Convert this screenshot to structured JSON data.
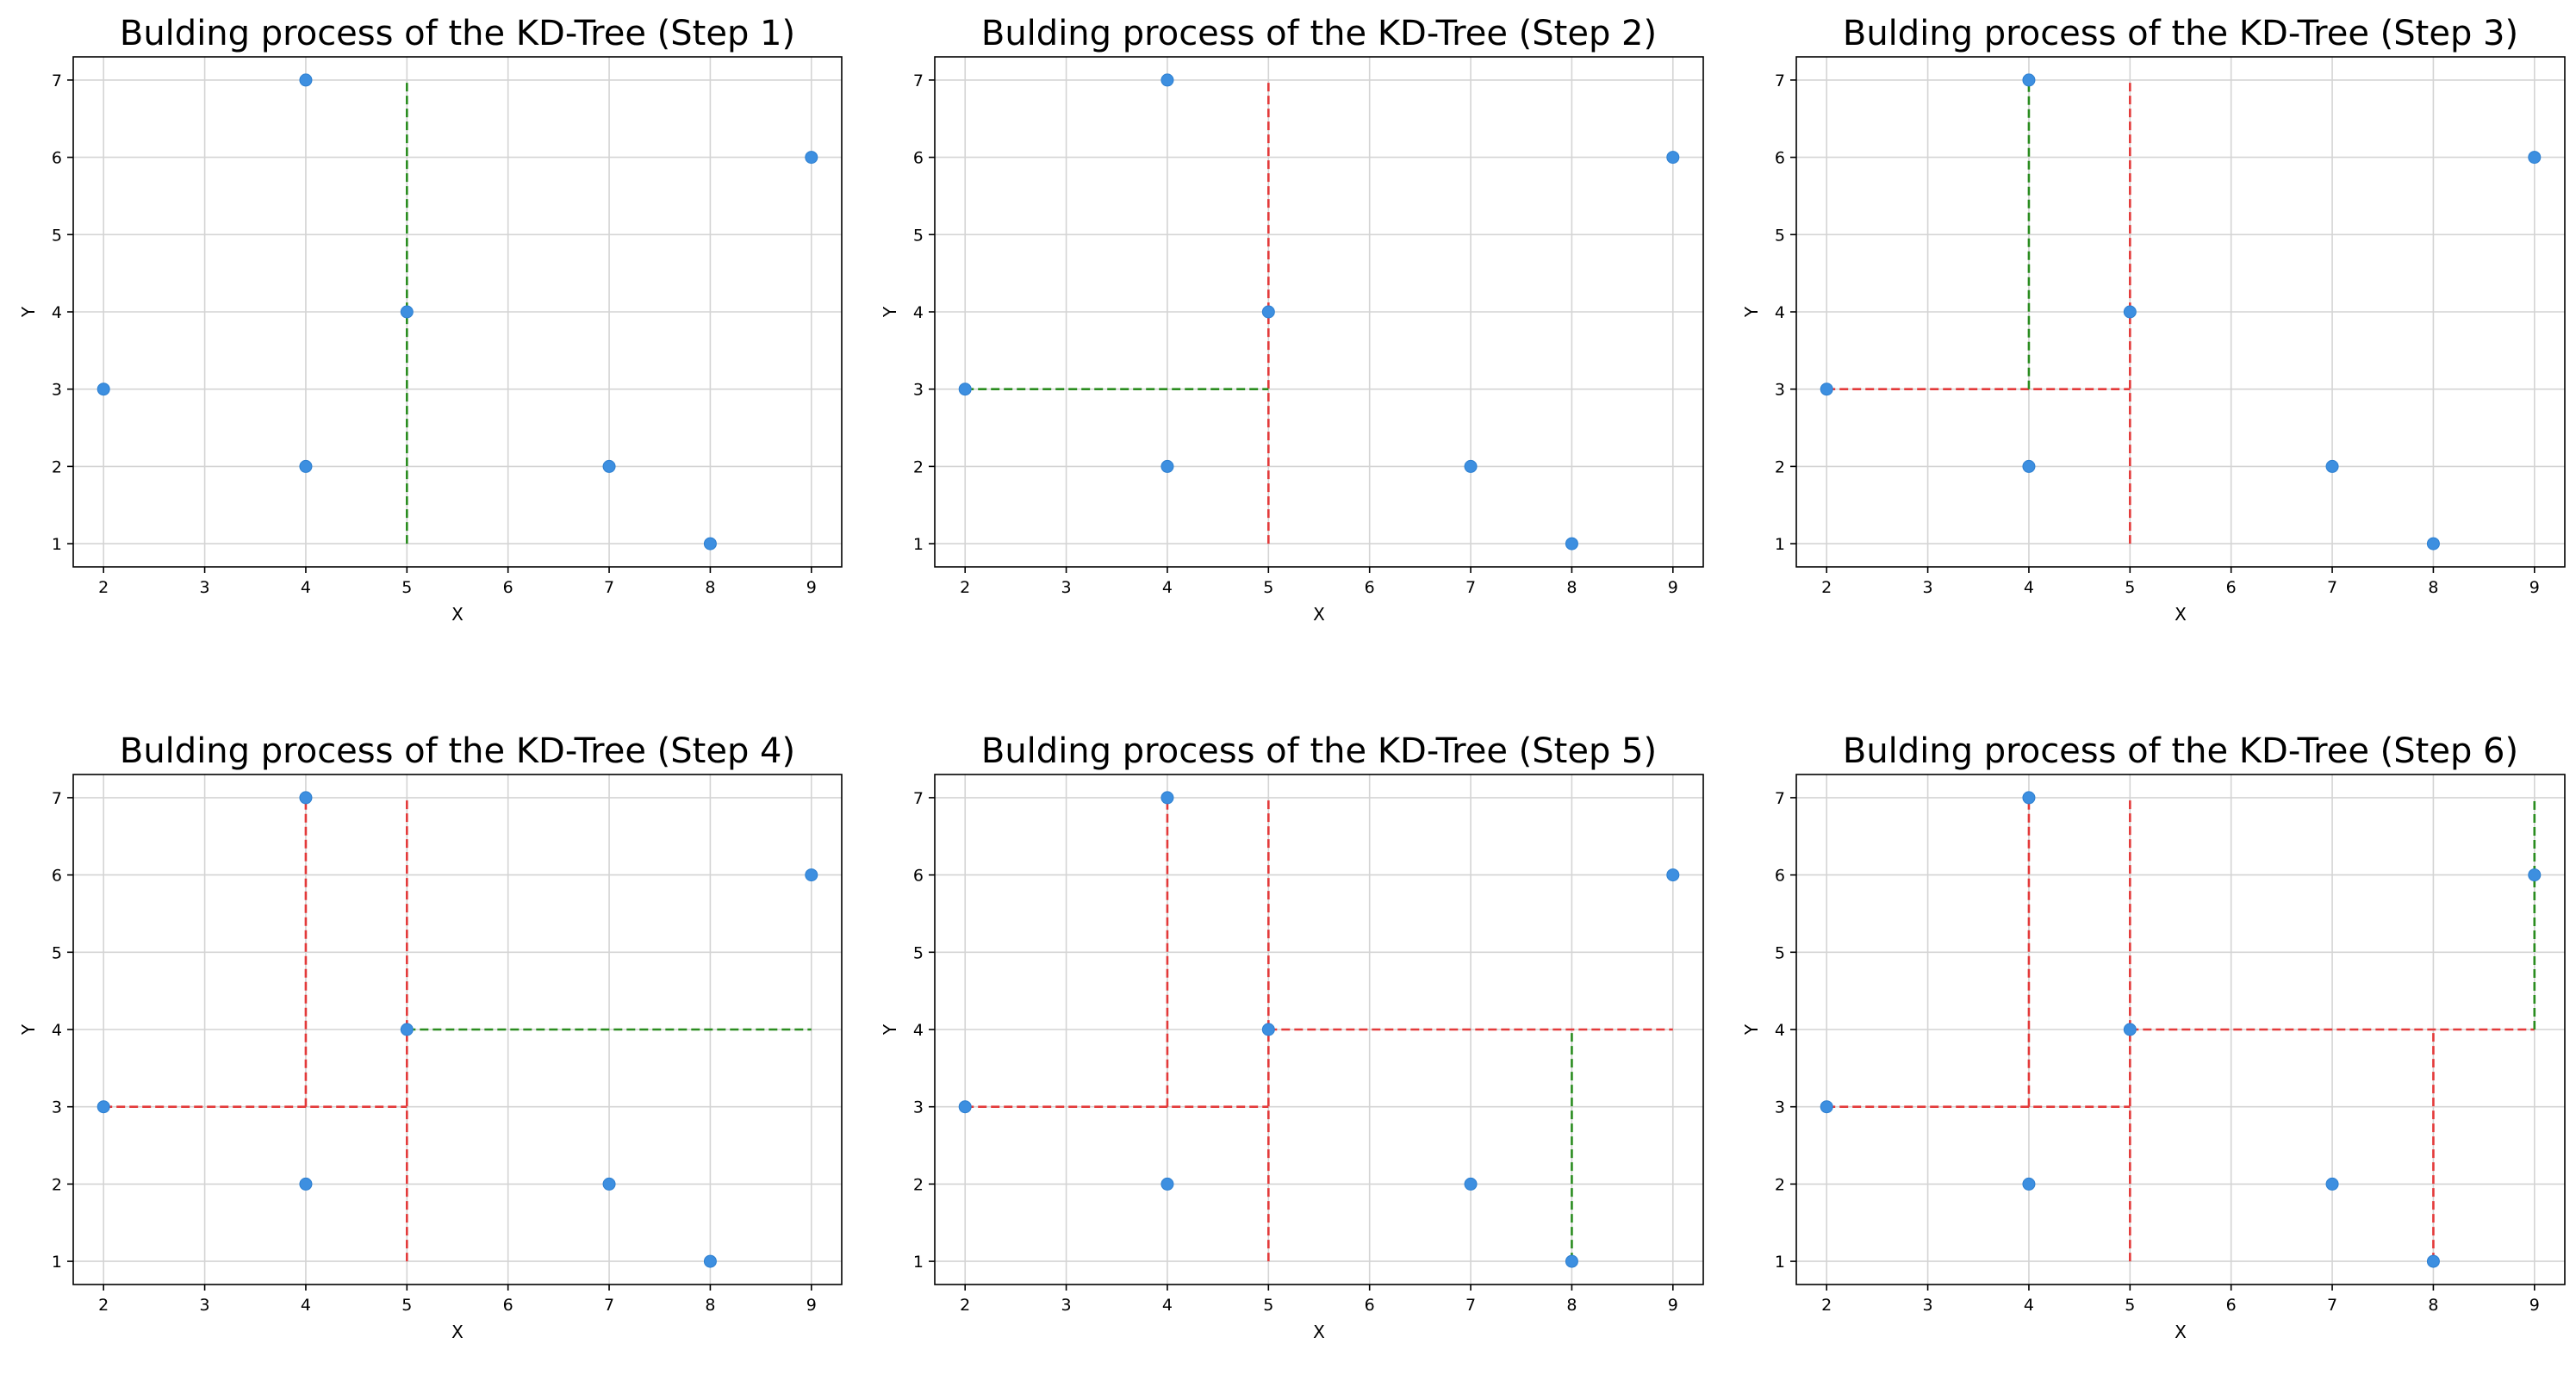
{
  "chart_data": [
    {
      "type": "scatter",
      "title": "Bulding process of the KD-Tree (Step 1)",
      "xlabel": "X",
      "ylabel": "Y",
      "xticks": [
        "2",
        "3",
        "4",
        "5",
        "6",
        "7",
        "8",
        "9"
      ],
      "yticks": [
        "1",
        "2",
        "3",
        "4",
        "5",
        "6",
        "7"
      ],
      "xlim": [
        1.7,
        9.3
      ],
      "ylim": [
        0.7,
        7.3
      ],
      "grid": true,
      "points": [
        [
          2,
          3
        ],
        [
          4,
          2
        ],
        [
          4,
          7
        ],
        [
          5,
          4
        ],
        [
          7,
          2
        ],
        [
          8,
          1
        ],
        [
          9,
          6
        ]
      ],
      "splits": [
        {
          "x1": 5,
          "y1": 1,
          "x2": 5,
          "y2": 7,
          "color": "#2a8c1f"
        }
      ]
    },
    {
      "type": "scatter",
      "title": "Bulding process of the KD-Tree (Step 2)",
      "xlabel": "X",
      "ylabel": "Y",
      "xticks": [
        "2",
        "3",
        "4",
        "5",
        "6",
        "7",
        "8",
        "9"
      ],
      "yticks": [
        "1",
        "2",
        "3",
        "4",
        "5",
        "6",
        "7"
      ],
      "xlim": [
        1.7,
        9.3
      ],
      "ylim": [
        0.7,
        7.3
      ],
      "grid": true,
      "points": [
        [
          2,
          3
        ],
        [
          4,
          2
        ],
        [
          4,
          7
        ],
        [
          5,
          4
        ],
        [
          7,
          2
        ],
        [
          8,
          1
        ],
        [
          9,
          6
        ]
      ],
      "splits": [
        {
          "x1": 5,
          "y1": 1,
          "x2": 5,
          "y2": 7,
          "color": "#e33a3a"
        },
        {
          "x1": 2,
          "y1": 3,
          "x2": 5,
          "y2": 3,
          "color": "#2a8c1f"
        }
      ]
    },
    {
      "type": "scatter",
      "title": "Bulding process of the KD-Tree (Step 3)",
      "xlabel": "X",
      "ylabel": "Y",
      "xticks": [
        "2",
        "3",
        "4",
        "5",
        "6",
        "7",
        "8",
        "9"
      ],
      "yticks": [
        "1",
        "2",
        "3",
        "4",
        "5",
        "6",
        "7"
      ],
      "xlim": [
        1.7,
        9.3
      ],
      "ylim": [
        0.7,
        7.3
      ],
      "grid": true,
      "points": [
        [
          2,
          3
        ],
        [
          4,
          2
        ],
        [
          4,
          7
        ],
        [
          5,
          4
        ],
        [
          7,
          2
        ],
        [
          8,
          1
        ],
        [
          9,
          6
        ]
      ],
      "splits": [
        {
          "x1": 5,
          "y1": 1,
          "x2": 5,
          "y2": 7,
          "color": "#e33a3a"
        },
        {
          "x1": 2,
          "y1": 3,
          "x2": 5,
          "y2": 3,
          "color": "#e33a3a"
        },
        {
          "x1": 4,
          "y1": 3,
          "x2": 4,
          "y2": 7,
          "color": "#2a8c1f"
        }
      ]
    },
    {
      "type": "scatter",
      "title": "Bulding process of the KD-Tree (Step 4)",
      "xlabel": "X",
      "ylabel": "Y",
      "xticks": [
        "2",
        "3",
        "4",
        "5",
        "6",
        "7",
        "8",
        "9"
      ],
      "yticks": [
        "1",
        "2",
        "3",
        "4",
        "5",
        "6",
        "7"
      ],
      "xlim": [
        1.7,
        9.3
      ],
      "ylim": [
        0.7,
        7.3
      ],
      "grid": true,
      "points": [
        [
          2,
          3
        ],
        [
          4,
          2
        ],
        [
          4,
          7
        ],
        [
          5,
          4
        ],
        [
          7,
          2
        ],
        [
          8,
          1
        ],
        [
          9,
          6
        ]
      ],
      "splits": [
        {
          "x1": 5,
          "y1": 1,
          "x2": 5,
          "y2": 7,
          "color": "#e33a3a"
        },
        {
          "x1": 2,
          "y1": 3,
          "x2": 5,
          "y2": 3,
          "color": "#e33a3a"
        },
        {
          "x1": 4,
          "y1": 3,
          "x2": 4,
          "y2": 7,
          "color": "#e33a3a"
        },
        {
          "x1": 5,
          "y1": 4,
          "x2": 9,
          "y2": 4,
          "color": "#2a8c1f"
        }
      ]
    },
    {
      "type": "scatter",
      "title": "Bulding process of the KD-Tree (Step 5)",
      "xlabel": "X",
      "ylabel": "Y",
      "xticks": [
        "2",
        "3",
        "4",
        "5",
        "6",
        "7",
        "8",
        "9"
      ],
      "yticks": [
        "1",
        "2",
        "3",
        "4",
        "5",
        "6",
        "7"
      ],
      "xlim": [
        1.7,
        9.3
      ],
      "ylim": [
        0.7,
        7.3
      ],
      "grid": true,
      "points": [
        [
          2,
          3
        ],
        [
          4,
          2
        ],
        [
          4,
          7
        ],
        [
          5,
          4
        ],
        [
          7,
          2
        ],
        [
          8,
          1
        ],
        [
          9,
          6
        ]
      ],
      "splits": [
        {
          "x1": 5,
          "y1": 1,
          "x2": 5,
          "y2": 7,
          "color": "#e33a3a"
        },
        {
          "x1": 2,
          "y1": 3,
          "x2": 5,
          "y2": 3,
          "color": "#e33a3a"
        },
        {
          "x1": 4,
          "y1": 3,
          "x2": 4,
          "y2": 7,
          "color": "#e33a3a"
        },
        {
          "x1": 5,
          "y1": 4,
          "x2": 9,
          "y2": 4,
          "color": "#e33a3a"
        },
        {
          "x1": 8,
          "y1": 1,
          "x2": 8,
          "y2": 4,
          "color": "#2a8c1f"
        }
      ]
    },
    {
      "type": "scatter",
      "title": "Bulding process of the KD-Tree (Step 6)",
      "xlabel": "X",
      "ylabel": "Y",
      "xticks": [
        "2",
        "3",
        "4",
        "5",
        "6",
        "7",
        "8",
        "9"
      ],
      "yticks": [
        "1",
        "2",
        "3",
        "4",
        "5",
        "6",
        "7"
      ],
      "xlim": [
        1.7,
        9.3
      ],
      "ylim": [
        0.7,
        7.3
      ],
      "grid": true,
      "points": [
        [
          2,
          3
        ],
        [
          4,
          2
        ],
        [
          4,
          7
        ],
        [
          5,
          4
        ],
        [
          7,
          2
        ],
        [
          8,
          1
        ],
        [
          9,
          6
        ]
      ],
      "splits": [
        {
          "x1": 5,
          "y1": 1,
          "x2": 5,
          "y2": 7,
          "color": "#e33a3a"
        },
        {
          "x1": 2,
          "y1": 3,
          "x2": 5,
          "y2": 3,
          "color": "#e33a3a"
        },
        {
          "x1": 4,
          "y1": 3,
          "x2": 4,
          "y2": 7,
          "color": "#e33a3a"
        },
        {
          "x1": 5,
          "y1": 4,
          "x2": 9,
          "y2": 4,
          "color": "#e33a3a"
        },
        {
          "x1": 8,
          "y1": 1,
          "x2": 8,
          "y2": 4,
          "color": "#e33a3a"
        },
        {
          "x1": 9,
          "y1": 4,
          "x2": 9,
          "y2": 7,
          "color": "#2a8c1f"
        }
      ]
    }
  ],
  "colors": {
    "point_fill": "#3d8fe0",
    "point_stroke": "#2d7fd0",
    "grid": "#d4d4d4",
    "axis": "#000000"
  }
}
